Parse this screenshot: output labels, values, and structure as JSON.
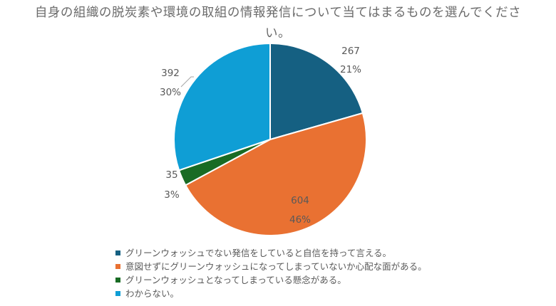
{
  "chart_data": {
    "type": "pie",
    "title": "自身の組織の脱炭素や環境の取組の情報発信について当てはまるものを選んでください。",
    "categories": [
      "グリーンウォッシュでない発信をしていると自信を持って言える。",
      "意図せずにグリーンウォッシュになってしまっていないか心配な面がある。",
      "グリーンウォッシュとなってしまっている懸念がある。",
      "わからない。"
    ],
    "values": [
      267,
      604,
      35,
      392
    ],
    "percent_labels": [
      "21%",
      "46%",
      "3%",
      "30%"
    ],
    "colors": [
      "#156082",
      "#E97132",
      "#196B24",
      "#0F9ED5"
    ],
    "legend_position": "bottom"
  }
}
